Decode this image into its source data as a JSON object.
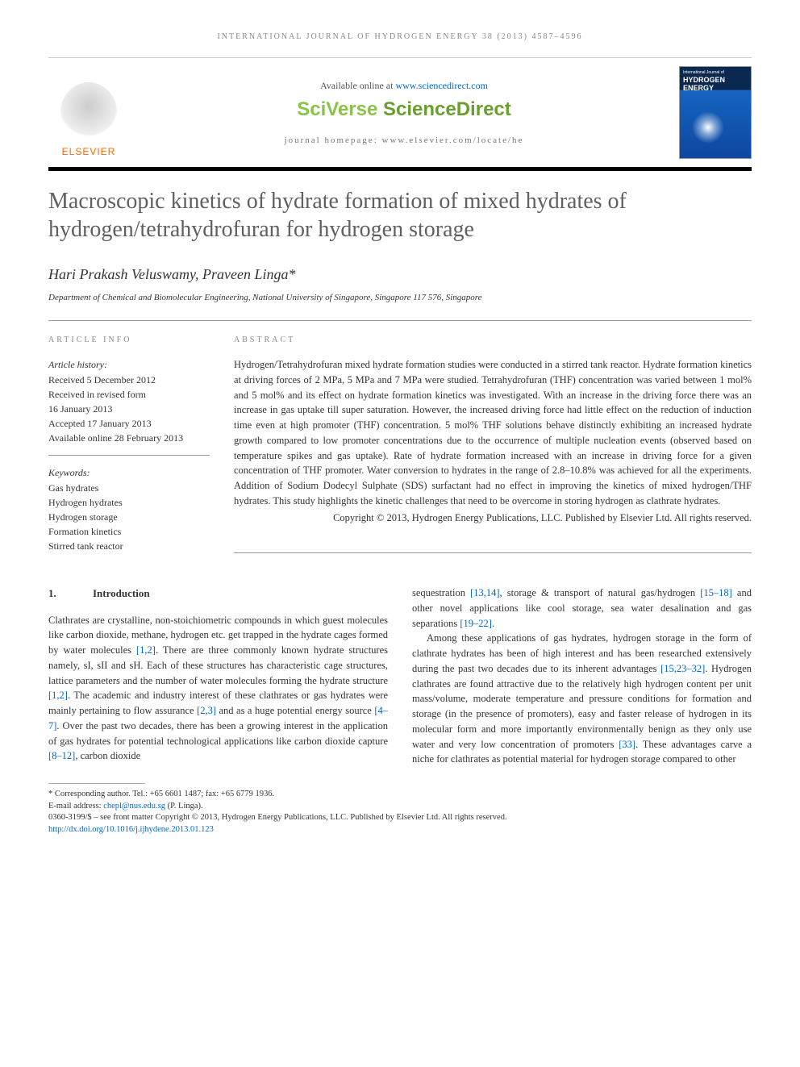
{
  "running_header": "INTERNATIONAL JOURNAL OF HYDROGEN ENERGY 38 (2013) 4587–4596",
  "header": {
    "available_text": "Available online at ",
    "available_url": "www.sciencedirect.com",
    "sciverse_part1": "SciVerse ",
    "sciverse_part2": "ScienceDirect",
    "homepage_label": "journal homepage: www.elsevier.com/locate/he",
    "elsevier_label": "ELSEVIER",
    "cover_top": "International Journal of",
    "cover_title1": "HYDROGEN",
    "cover_title2": "ENERGY"
  },
  "title": "Macroscopic kinetics of hydrate formation of mixed hydrates of hydrogen/tetrahydrofuran for hydrogen storage",
  "authors": "Hari Prakash Veluswamy, Praveen Linga*",
  "affiliation": "Department of Chemical and Biomolecular Engineering, National University of Singapore, Singapore 117 576, Singapore",
  "info": {
    "label": "ARTICLE INFO",
    "history_label": "Article history:",
    "received": "Received 5 December 2012",
    "revised1": "Received in revised form",
    "revised2": "16 January 2013",
    "accepted": "Accepted 17 January 2013",
    "online": "Available online 28 February 2013",
    "keywords_label": "Keywords:",
    "kw1": "Gas hydrates",
    "kw2": "Hydrogen hydrates",
    "kw3": "Hydrogen storage",
    "kw4": "Formation kinetics",
    "kw5": "Stirred tank reactor"
  },
  "abstract": {
    "label": "ABSTRACT",
    "text": "Hydrogen/Tetrahydrofuran mixed hydrate formation studies were conducted in a stirred tank reactor. Hydrate formation kinetics at driving forces of 2 MPa, 5 MPa and 7 MPa were studied. Tetrahydrofuran (THF) concentration was varied between 1 mol% and 5 mol% and its effect on hydrate formation kinetics was investigated. With an increase in the driving force there was an increase in gas uptake till super saturation. However, the increased driving force had little effect on the reduction of induction time even at high promoter (THF) concentration. 5 mol% THF solutions behave distinctly exhibiting an increased hydrate growth compared to low promoter concentrations due to the occurrence of multiple nucleation events (observed based on temperature spikes and gas uptake). Rate of hydrate formation increased with an increase in driving force for a given concentration of THF promoter. Water conversion to hydrates in the range of 2.8–10.8% was achieved for all the experiments. Addition of Sodium Dodecyl Sulphate (SDS) surfactant had no effect in improving the kinetics of mixed hydrogen/THF hydrates. This study highlights the kinetic challenges that need to be overcome in storing hydrogen as clathrate hydrates.",
    "copyright": "Copyright © 2013, Hydrogen Energy Publications, LLC. Published by Elsevier Ltd. All rights reserved."
  },
  "body": {
    "sec1_num": "1.",
    "sec1_title": "Introduction",
    "col1_p1a": "Clathrates are crystalline, non-stoichiometric compounds in which guest molecules like carbon dioxide, methane, hydrogen etc. get trapped in the hydrate cages formed by water molecules ",
    "ref_12a": "[1,2]",
    "col1_p1b": ". There are three commonly known hydrate structures namely, sI, sII and sH. Each of these structures has characteristic cage structures, lattice parameters and the number of water molecules forming the hydrate structure ",
    "ref_12b": "[1,2]",
    "col1_p1c": ". The academic and industry interest of these clathrates or gas hydrates were mainly pertaining to flow assurance ",
    "ref_23": "[2,3]",
    "col1_p1d": " and as a huge potential energy source ",
    "ref_47": "[4–7]",
    "col1_p1e": ". Over the past two decades, there has been a growing interest in the application of gas hydrates for potential technological applications like carbon dioxide capture ",
    "ref_812": "[8–12]",
    "col1_p1f": ", carbon dioxide ",
    "col2_p1a": "sequestration ",
    "ref_1314": "[13,14]",
    "col2_p1b": ", storage & transport of natural gas/hydrogen ",
    "ref_1518": "[15–18]",
    "col2_p1c": " and other novel applications like cool storage, sea water desalination and gas separations ",
    "ref_1922": "[19–22]",
    "col2_p1d": ".",
    "col2_p2a": "Among these applications of gas hydrates, hydrogen storage in the form of clathrate hydrates has been of high interest and has been researched extensively during the past two decades due to its inherent advantages ",
    "ref_152332": "[15,23–32]",
    "col2_p2b": ". Hydrogen clathrates are found attractive due to the relatively high hydrogen content per unit mass/volume, moderate temperature and pressure conditions for formation and storage (in the presence of promoters), easy and faster release of hydrogen in its molecular form and more importantly environmentally benign as they only use water and very low concentration of promoters ",
    "ref_33": "[33]",
    "col2_p2c": ". These advantages carve a niche for clathrates as potential material for hydrogen storage compared to other"
  },
  "footnotes": {
    "corr": "* Corresponding author. Tel.: +65 6601 1487; fax: +65 6779 1936.",
    "email_label": "E-mail address: ",
    "email": "chepl@nus.edu.sg",
    "email_tail": " (P. Linga).",
    "issn": "0360-3199/$ – see front matter Copyright © 2013, Hydrogen Energy Publications, LLC. Published by Elsevier Ltd. All rights reserved.",
    "doi": "http://dx.doi.org/10.1016/j.ijhydene.2013.01.123"
  }
}
